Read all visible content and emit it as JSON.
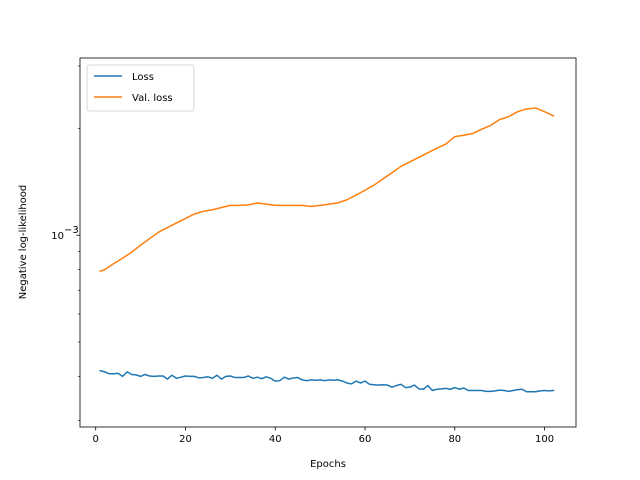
{
  "chart_data": {
    "type": "line",
    "xlabel": "Epochs",
    "ylabel": "Negative log-likelihood",
    "yscale": "log",
    "xlim": [
      -3.5,
      107
    ],
    "ylim": [
      0.000288,
      0.00316
    ],
    "x_ticks": [
      0,
      20,
      40,
      60,
      80,
      100
    ],
    "y_ticks": [
      {
        "value": 0.001,
        "label": "10",
        "exponent": "−3"
      }
    ],
    "legend_position": "top-left",
    "grid": false,
    "series": [
      {
        "name": "Loss",
        "color": "#1f77b4",
        "x": [
          1,
          2,
          3,
          4,
          5,
          6,
          7,
          8,
          9,
          10,
          11,
          12,
          13,
          14,
          15,
          16,
          17,
          18,
          19,
          20,
          21,
          22,
          23,
          24,
          25,
          26,
          27,
          28,
          29,
          30,
          31,
          32,
          33,
          34,
          35,
          36,
          37,
          38,
          39,
          40,
          41,
          42,
          43,
          44,
          45,
          46,
          47,
          48,
          49,
          50,
          51,
          52,
          53,
          54,
          55,
          56,
          57,
          58,
          59,
          60,
          61,
          62,
          63,
          64,
          65,
          66,
          67,
          68,
          69,
          70,
          71,
          72,
          73,
          74,
          75,
          76,
          77,
          78,
          79,
          80,
          81,
          82,
          83,
          84,
          85,
          86,
          87,
          88,
          89,
          90,
          91,
          92,
          93,
          94,
          95,
          96,
          97,
          98,
          99,
          100,
          101,
          102
        ],
        "values": [
          0.000415,
          0.000412,
          0.000407,
          0.000407,
          0.000408,
          0.0004,
          0.000412,
          0.000405,
          0.000404,
          0.0004,
          0.000405,
          0.000401,
          0.0004,
          0.000401,
          0.000401,
          0.000393,
          0.000403,
          0.000395,
          0.000398,
          0.000401,
          0.0004,
          0.0004,
          0.000396,
          0.000397,
          0.000399,
          0.000395,
          0.000403,
          0.000393,
          0.0004,
          0.000401,
          0.000397,
          0.000397,
          0.000397,
          0.000401,
          0.000395,
          0.000398,
          0.000394,
          0.000399,
          0.000395,
          0.000388,
          0.000389,
          0.000398,
          0.000393,
          0.000396,
          0.000397,
          0.000391,
          0.000389,
          0.000391,
          0.00039,
          0.000391,
          0.000389,
          0.000391,
          0.00039,
          0.000391,
          0.000388,
          0.000383,
          0.000381,
          0.000388,
          0.000383,
          0.000388,
          0.00038,
          0.000379,
          0.000378,
          0.000379,
          0.000378,
          0.000373,
          0.000377,
          0.00038,
          0.000372,
          0.000373,
          0.000378,
          0.000369,
          0.000368,
          0.000377,
          0.000365,
          0.000368,
          0.000369,
          0.00037,
          0.000368,
          0.000372,
          0.000368,
          0.000371,
          0.000365,
          0.000365,
          0.000365,
          0.000365,
          0.000363,
          0.000363,
          0.000364,
          0.000366,
          0.000365,
          0.000363,
          0.000365,
          0.000367,
          0.000368,
          0.000362,
          0.000362,
          0.000362,
          0.000364,
          0.000365,
          0.000364,
          0.000365
        ]
      },
      {
        "name": "Val. loss",
        "color": "#ff7f0e",
        "x": [
          1,
          2,
          4,
          6,
          8,
          10,
          14,
          18,
          22,
          24,
          26,
          30,
          32,
          34,
          36,
          38,
          40,
          44,
          46,
          48,
          50,
          54,
          56,
          58,
          60,
          62,
          66,
          68,
          72,
          76,
          78,
          80,
          82,
          84,
          86,
          88,
          90,
          92,
          94,
          96,
          98,
          100,
          102
        ],
        "values": [
          0.000792,
          0.0008,
          0.000832,
          0.000862,
          0.000896,
          0.000938,
          0.00102,
          0.001083,
          0.001148,
          0.001168,
          0.00118,
          0.001214,
          0.001214,
          0.001218,
          0.001233,
          0.001224,
          0.001214,
          0.001214,
          0.001214,
          0.001205,
          0.001214,
          0.001234,
          0.001259,
          0.001298,
          0.001339,
          0.001385,
          0.0015,
          0.001563,
          0.001658,
          0.00176,
          0.001807,
          0.001897,
          0.001914,
          0.001936,
          0.00199,
          0.00204,
          0.00212,
          0.00216,
          0.00223,
          0.00227,
          0.002285,
          0.00223,
          0.00217
        ]
      }
    ]
  }
}
